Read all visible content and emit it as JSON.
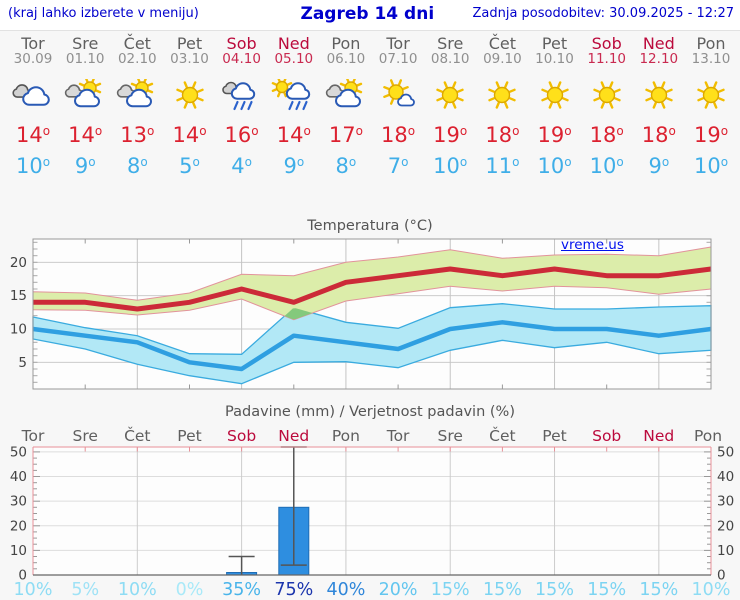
{
  "header": {
    "left_note": "(kraj lahko izberete v meniju)",
    "title": "Zagreb 14 dni",
    "updated": "Zadnja posodobitev: 30.09.2025 - 12:27"
  },
  "watermark": "vreme.us",
  "forecast": {
    "days": [
      {
        "name": "Tor",
        "date": "30.09",
        "weekend": false,
        "icon": "cloudy",
        "high": "14",
        "low": "10"
      },
      {
        "name": "Sre",
        "date": "01.10",
        "weekend": false,
        "icon": "partly-cloudy",
        "high": "14",
        "low": "9"
      },
      {
        "name": "Čet",
        "date": "02.10",
        "weekend": false,
        "icon": "partly-cloudy",
        "high": "13",
        "low": "8"
      },
      {
        "name": "Pet",
        "date": "03.10",
        "weekend": false,
        "icon": "sunny",
        "high": "14",
        "low": "5"
      },
      {
        "name": "Sob",
        "date": "04.10",
        "weekend": true,
        "icon": "rain",
        "high": "16",
        "low": "4"
      },
      {
        "name": "Ned",
        "date": "05.10",
        "weekend": true,
        "icon": "sun-rain",
        "high": "14",
        "low": "9"
      },
      {
        "name": "Pon",
        "date": "06.10",
        "weekend": false,
        "icon": "partly-cloudy",
        "high": "17",
        "low": "8"
      },
      {
        "name": "Tor",
        "date": "07.10",
        "weekend": false,
        "icon": "sun-small-cloud",
        "high": "18",
        "low": "7"
      },
      {
        "name": "Sre",
        "date": "08.10",
        "weekend": false,
        "icon": "sunny",
        "high": "19",
        "low": "10"
      },
      {
        "name": "Čet",
        "date": "09.10",
        "weekend": false,
        "icon": "sunny",
        "high": "18",
        "low": "11"
      },
      {
        "name": "Pet",
        "date": "10.10",
        "weekend": false,
        "icon": "sunny",
        "high": "19",
        "low": "10"
      },
      {
        "name": "Sob",
        "date": "11.10",
        "weekend": true,
        "icon": "sunny",
        "high": "18",
        "low": "10"
      },
      {
        "name": "Ned",
        "date": "12.10",
        "weekend": true,
        "icon": "sunny",
        "high": "18",
        "low": "9"
      },
      {
        "name": "Pon",
        "date": "13.10",
        "weekend": false,
        "icon": "sunny",
        "high": "19",
        "low": "10"
      }
    ]
  },
  "chart_data": [
    {
      "type": "line",
      "title": "Temperatura (°C)",
      "x_labels": [
        "Tor",
        "Sre",
        "Čet",
        "Pet",
        "Sob",
        "Ned",
        "Pon",
        "Tor",
        "Sre",
        "Čet",
        "Pet",
        "Sob",
        "Ned",
        "Pon"
      ],
      "ylim": [
        1,
        23.5
      ],
      "yticks": [
        5,
        10,
        15,
        20
      ],
      "grid_x_days": [
        2,
        4,
        6,
        8,
        10,
        12
      ],
      "legend_position": "none",
      "series": [
        {
          "name": "max-temp",
          "color": "#cc2a38",
          "band_color": "#dcedaa",
          "band_edge": "#e2939b",
          "values": [
            14,
            14,
            13,
            14,
            16,
            14,
            17,
            18,
            19,
            18,
            19,
            18,
            18,
            19
          ],
          "band_upper": [
            15.6,
            15.4,
            14.3,
            15.4,
            18.2,
            18.0,
            20.0,
            20.8,
            21.9,
            20.6,
            21.1,
            21.2,
            21.0,
            22.3
          ],
          "band_lower": [
            12.9,
            12.8,
            12.1,
            12.8,
            14.5,
            11.4,
            14.2,
            15.3,
            16.4,
            15.7,
            16.4,
            16.2,
            15.2,
            16.0
          ]
        },
        {
          "name": "min-temp",
          "color": "#2f9fe1",
          "band_color": "#b2e8f6",
          "band_edge": "#3aabdf",
          "values": [
            10,
            9,
            8,
            5,
            4,
            9,
            8,
            7,
            10,
            11,
            10,
            10,
            9,
            10
          ],
          "band_upper": [
            11.8,
            10.2,
            9.0,
            6.3,
            6.2,
            13.2,
            11.0,
            10.1,
            13.2,
            13.8,
            13.0,
            13.0,
            13.3,
            13.5
          ],
          "band_lower": [
            8.5,
            7.0,
            4.7,
            3.0,
            1.8,
            5.0,
            5.1,
            4.2,
            6.8,
            8.3,
            7.2,
            8.0,
            6.3,
            6.8
          ]
        }
      ],
      "band_overlap_color": "#84c97c"
    },
    {
      "type": "bar",
      "title": "Padavine (mm) / Verjetnost padavin (%)",
      "categories": [
        "Tor",
        "Sre",
        "Čet",
        "Pet",
        "Sob",
        "Ned",
        "Pon",
        "Tor",
        "Sre",
        "Čet",
        "Pet",
        "Sob",
        "Ned",
        "Pon"
      ],
      "values": [
        0,
        0,
        0,
        0,
        1,
        27.5,
        0,
        0,
        0,
        0,
        0,
        0,
        0,
        0
      ],
      "whiskers": [
        null,
        null,
        null,
        null,
        [
          0,
          7.5
        ],
        [
          4,
          52
        ],
        null,
        null,
        null,
        null,
        null,
        null,
        null,
        null
      ],
      "probabilities": [
        "10%",
        "5%",
        "10%",
        "0%",
        "35%",
        "75%",
        "40%",
        "20%",
        "15%",
        "15%",
        "15%",
        "15%",
        "15%",
        "10%"
      ],
      "prob_colors": [
        "#8edcf4",
        "#9fe2f6",
        "#8edcf4",
        "#a9e9f8",
        "#49b4ea",
        "#1b35ad",
        "#2f86d9",
        "#63c6ef",
        "#7cd4f2",
        "#7cd4f2",
        "#7cd4f2",
        "#7cd4f2",
        "#7cd4f2",
        "#8edcf4"
      ],
      "ylim": [
        0,
        52
      ],
      "yticks": [
        0,
        10,
        20,
        30,
        40,
        50
      ],
      "bar_color": "#2e8ee0",
      "bar_edge": "#1f6db5",
      "whisker_color": "#555555"
    }
  ]
}
